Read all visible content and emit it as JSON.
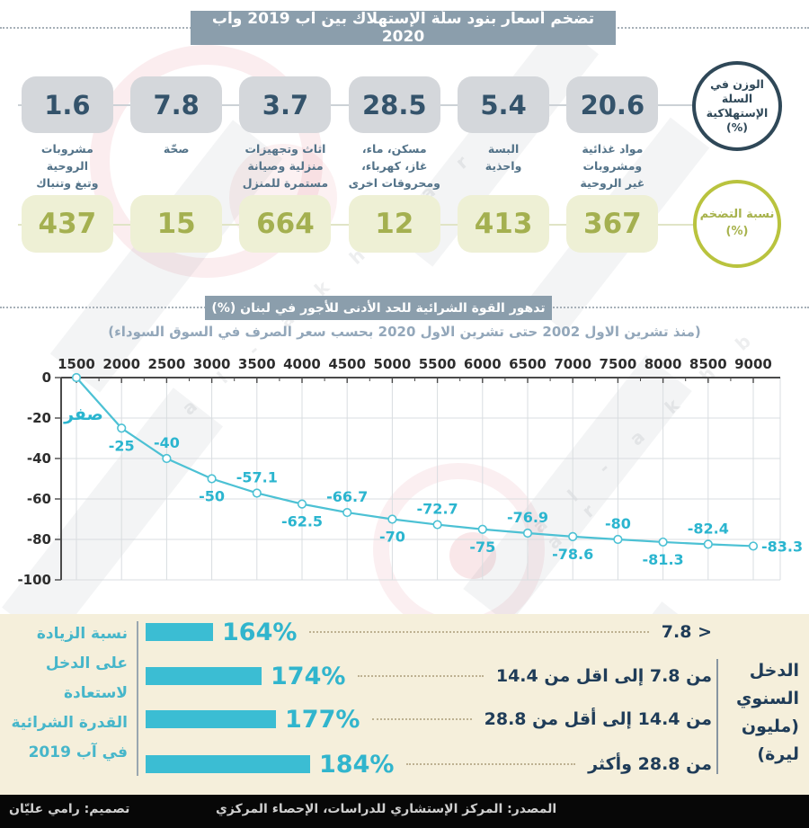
{
  "footer": {
    "source": "المصدر: المركز الإستشاري للدراسات، الإحصاء المركزي",
    "design": "تصميم: رامي عليّان"
  },
  "circles": {
    "weight_lines": [
      "الوزن في",
      "السلة",
      "الإستهلاكية",
      "(%)"
    ],
    "inflation_lines": [
      "نسبة التضخم",
      "(%)"
    ]
  },
  "colors": {
    "title_bar": "#8b9eac",
    "line_teal": "#4cc1d4",
    "bar_cyan": "#3bbdd3",
    "olive": "#a4b050",
    "navy": "#2f4858",
    "panel_beige": "#f5efdb"
  },
  "watermark_letters": "a l - a k h b a r",
  "chart_data": [
    {
      "id": "basket_inflation",
      "type": "table",
      "title": "تضخم أسعار بنود سلّة الإستهلاك بين آب 2019 وآب 2020",
      "columns": [
        "بند الاستهلاك",
        "الوزن في السلة الإستهلاكية (%)",
        "نسبة التضخم (%)"
      ],
      "rows": [
        [
          "مواد غذائية ومشروبات غير الروحية",
          20.6,
          367
        ],
        [
          "البسة واحذية",
          5.4,
          413
        ],
        [
          "مسكن، ماء، غاز، كهرباء، ومحروقات اخرى",
          28.5,
          12
        ],
        [
          "اثاث وتجهيزات منزلية وصيانة مستمرة للمنزل",
          3.7,
          664
        ],
        [
          "صحّة",
          7.8,
          15
        ],
        [
          "مشروبات الروحية وتبغ وتنباك",
          1.6,
          437
        ]
      ],
      "row_label_lines": [
        [
          "مواد غذائية",
          "ومشروبات",
          "غير الروحية"
        ],
        [
          "البسة",
          "واحذية"
        ],
        [
          "مسكن، ماء،",
          "غاز، كهرباء،",
          "ومحروقات اخرى"
        ],
        [
          "اثاث وتجهيزات",
          "منزلية وصيانة",
          "مستمرة للمنزل"
        ],
        [
          "صحّة"
        ],
        [
          "مشروبات",
          "الروحية",
          "وتبغ وتنباك"
        ]
      ]
    },
    {
      "id": "purchasing_power",
      "type": "line",
      "title": "تدهور القوة الشرائية للحد الأدنى للأجور في لبنان (%)",
      "subtitle": "(منذ تشرين الاول 2002 حتى تشرين الاول 2020 بحسب سعر الصرف في السوق السوداء)",
      "x": [
        1500,
        2000,
        2500,
        3000,
        3500,
        4000,
        4500,
        5000,
        5500,
        6000,
        6500,
        7000,
        7500,
        8000,
        8500,
        9000
      ],
      "values": [
        0,
        -25,
        -40,
        -50,
        -57.1,
        -62.5,
        -66.7,
        -70,
        -72.7,
        -75,
        -76.9,
        -78.6,
        -80,
        -81.3,
        -82.4,
        -83.3
      ],
      "point_labels": [
        "صفر",
        "-25",
        "-40",
        "-50",
        "-57.1",
        "-62.5",
        "-66.7",
        "-70",
        "-72.7",
        "-75",
        "-76.9",
        "-78.6",
        "-80",
        "-81.3",
        "-82.4",
        "-83.3"
      ],
      "point_label_side": [
        "zero",
        "below",
        "above",
        "below",
        "above",
        "below",
        "above",
        "below",
        "above",
        "below",
        "above",
        "below",
        "above",
        "below",
        "above",
        "right"
      ],
      "x_ticks": [
        1500,
        2000,
        2500,
        3000,
        3500,
        4000,
        4500,
        5000,
        5500,
        6000,
        6500,
        7000,
        7500,
        8000,
        8500,
        9000
      ],
      "y_ticks": [
        0,
        -20,
        -40,
        -60,
        -80,
        -100
      ],
      "xlim": [
        1500,
        9000
      ],
      "ylim": [
        -100,
        0
      ],
      "grid": true,
      "legend": "none",
      "line_color": "#4cc1d4"
    },
    {
      "id": "income_increase",
      "type": "bar",
      "title_lines": [
        "نسبة الزيادة",
        "على الدخل",
        "لاستعادة",
        "القدرة الشرائية",
        "في آب 2019"
      ],
      "categories": [
        "7.8 >",
        "من 7.8 إلى اقل من 14.4",
        "من 14.4 إلى أقل من 28.8",
        "من 28.8 وأكثر"
      ],
      "category_dirs": [
        "ltr",
        "rtl",
        "rtl",
        "rtl"
      ],
      "values": [
        164,
        174,
        177,
        184
      ],
      "value_labels": [
        "164%",
        "174%",
        "177%",
        "184%"
      ],
      "axis_label_lines": [
        "الدخل",
        "السنوي",
        "(مليون",
        "ليرة)"
      ],
      "bar_color": "#3bbdd3"
    }
  ]
}
